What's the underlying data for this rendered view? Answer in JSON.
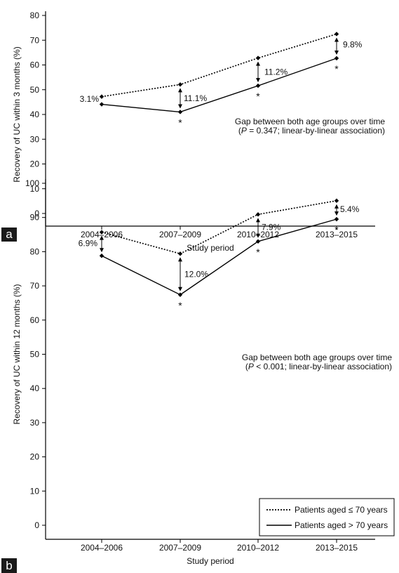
{
  "chart_data": [
    {
      "panel_label": "a",
      "type": "line",
      "categories": [
        "2004–2006",
        "2007–2009",
        "2010–2012",
        "2013–2015"
      ],
      "xlabel": "Study period",
      "ylabel": "Recovery of UC within 3 months (%)",
      "ylim": [
        0,
        80
      ],
      "yticks": [
        0,
        10,
        20,
        30,
        40,
        50,
        60,
        70,
        80
      ],
      "grid": false,
      "series": [
        {
          "values": [
            47.2,
            52.1,
            62.8,
            72.5
          ],
          "style": "dotted"
        },
        {
          "values": [
            44.1,
            41.0,
            51.6,
            62.7
          ],
          "style": "solid"
        }
      ],
      "gap_labels": [
        "3.1%",
        "11.1%",
        "11.2%",
        "9.8%"
      ],
      "significance_marker": "*",
      "significant": [
        false,
        true,
        true,
        true
      ],
      "annotation": {
        "line1": "Gap between both age groups over time",
        "line2_italic": "P",
        "line2_rest": " = 0.347; linear-by-linear association)"
      }
    },
    {
      "panel_label": "b",
      "type": "line",
      "categories": [
        "2004–2006",
        "2007–2009",
        "2010–2012",
        "2013–2015"
      ],
      "xlabel": "Study period",
      "ylabel": "Recovery of UC within 12 months (%)",
      "ylim": [
        0,
        100
      ],
      "yticks": [
        0,
        10,
        20,
        30,
        40,
        50,
        60,
        70,
        80,
        90,
        100
      ],
      "grid": false,
      "series": [
        {
          "name": "Patients aged ≤ 70 years",
          "values": [
            85.7,
            79.4,
            90.9,
            94.9
          ],
          "style": "dotted"
        },
        {
          "name": "Patients aged > 70 years",
          "values": [
            78.8,
            67.4,
            83.0,
            89.5
          ],
          "style": "solid"
        }
      ],
      "gap_labels": [
        "6.9%",
        "12.0%",
        "7.9%",
        "5.4%"
      ],
      "significance_marker": "*",
      "significant": [
        false,
        true,
        true,
        true
      ],
      "annotation": {
        "line1": "Gap between both age groups over time",
        "line2_italic": "P",
        "line2_rest": " < 0.001; linear-by-linear association)"
      },
      "legend_position": "bottom-right"
    }
  ]
}
